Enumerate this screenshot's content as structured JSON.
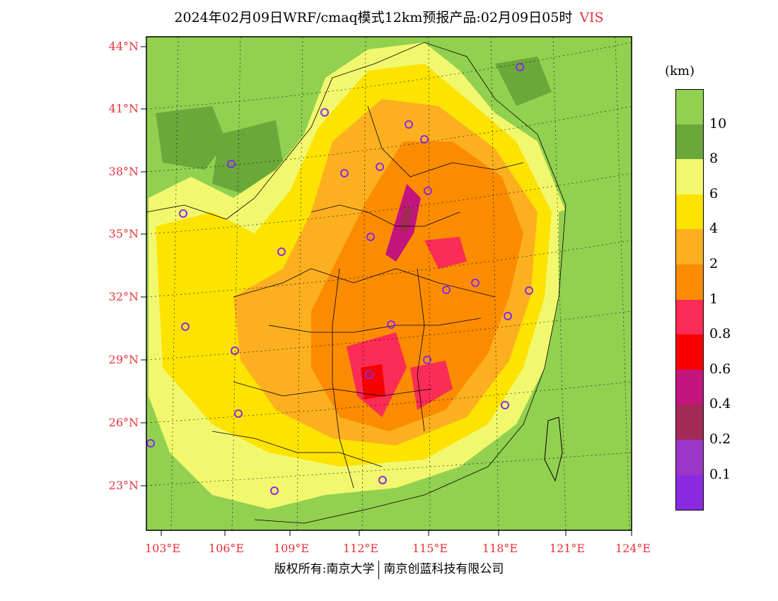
{
  "title": {
    "main": "2024年02月09日WRF/cmaq模式12km预报产品:02月09日05时",
    "variable": "VIS"
  },
  "axes": {
    "lat_labels": [
      "44°N",
      "41°N",
      "38°N",
      "35°N",
      "32°N",
      "29°N",
      "26°N",
      "23°N"
    ],
    "lon_labels": [
      "103°E",
      "106°E",
      "109°E",
      "112°E",
      "115°E",
      "118°E",
      "121°E",
      "124°E"
    ]
  },
  "legend": {
    "unit": "(km)",
    "labels": [
      "10",
      "8",
      "6",
      "4",
      "2",
      "1",
      "0.8",
      "0.6",
      "0.4",
      "0.2",
      "0.1"
    ],
    "colors": [
      "#92d050",
      "#6aa83a",
      "#f2f86e",
      "#fde300",
      "#fcb020",
      "#fb8c00",
      "#fb2c55",
      "#f90000",
      "#c4157f",
      "#a32a57",
      "#9b36c8",
      "#8a2be2"
    ]
  },
  "footer": {
    "left": "版权所有:南京大学",
    "right": "南京创蓝科技有限公司"
  }
}
